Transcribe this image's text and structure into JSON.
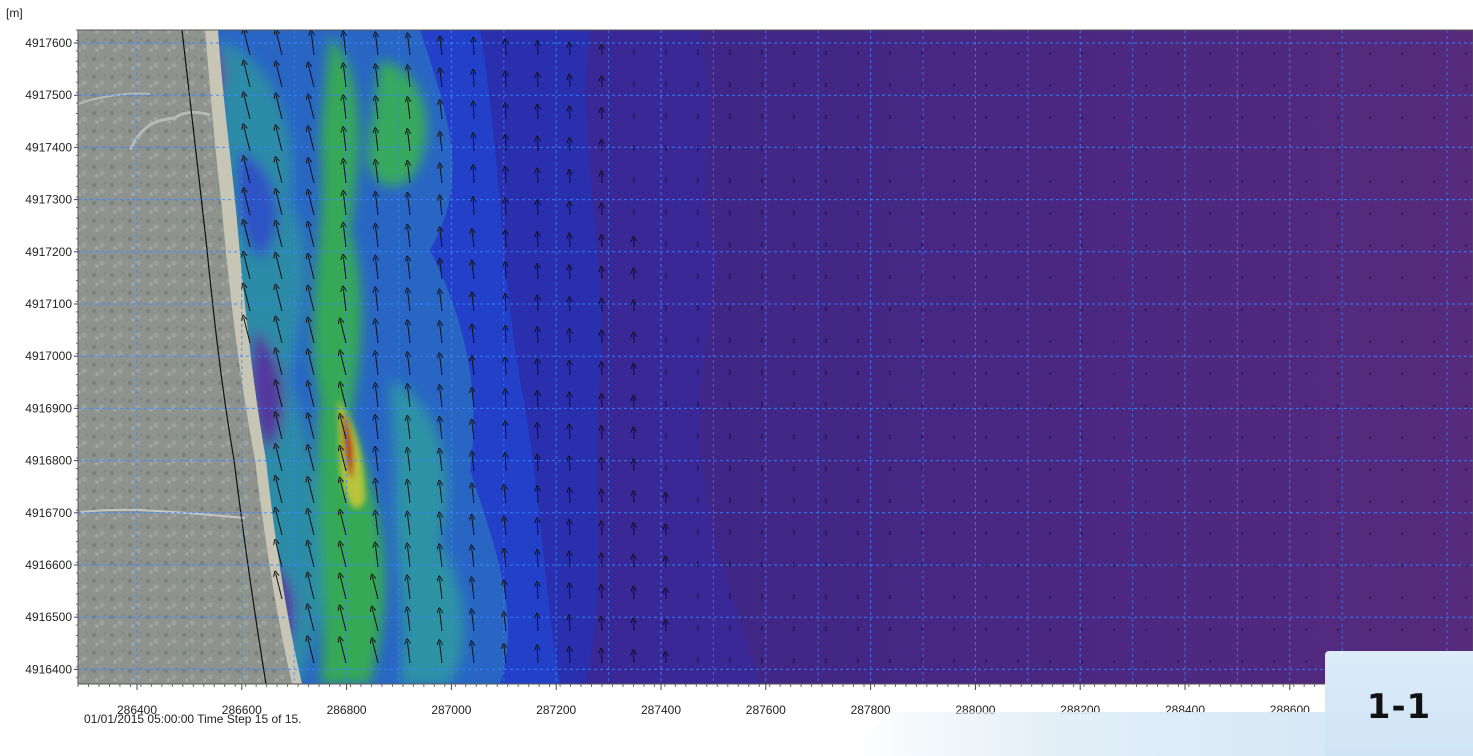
{
  "unit_label": "[m]",
  "status_line": "01/01/2015 05:00:00  Time Step 15 of 15.",
  "badge_label": "1-1",
  "map": {
    "y_ticks": [
      "4917600",
      "4917500",
      "4917400",
      "4917300",
      "4917200",
      "4917100",
      "4917000",
      "4916900",
      "4916800",
      "4916700",
      "4916600",
      "4916500",
      "4916400"
    ],
    "x_ticks": [
      "286400",
      "286600",
      "286800",
      "287000",
      "287200",
      "287400",
      "287600",
      "287800",
      "288000",
      "288200",
      "288400",
      "288600"
    ],
    "grid_style": "dashed-blue",
    "layers": [
      "satellite-imagery-land",
      "current-speed-contours",
      "current-vector-arrows",
      "coastline"
    ],
    "colors": {
      "land": "#8e918c",
      "sand": "#c9c7b6",
      "deep_sea": "#58297a",
      "mid_sea": "#2f2fa0",
      "shallow_blue": "#2e63c2",
      "teal": "#2f9a9b",
      "green": "#34b23d",
      "peak_red": "#b5331f",
      "grid": "#3a86ff"
    }
  }
}
